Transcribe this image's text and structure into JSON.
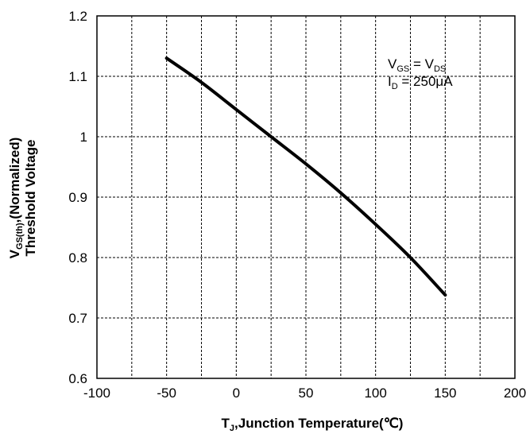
{
  "chart_data": {
    "type": "line",
    "xlim": [
      -100,
      200
    ],
    "ylim": [
      0.6,
      1.2
    ],
    "x_ticks": [
      "-100",
      "-50",
      "0",
      "50",
      "100",
      "150",
      "200"
    ],
    "y_ticks": [
      "0.6",
      "0.7",
      "0.8",
      "0.9",
      "1",
      "1.1",
      "1.2"
    ],
    "grid": true,
    "xlabel": {
      "main": "T",
      "sub": "J",
      "rest": ",Junction Temperature(℃)"
    },
    "ylabel": {
      "line1": {
        "main": "V",
        "sub": "GS(th)",
        "rest": ",(Normalized)"
      },
      "line2": "Threshold Voltage"
    },
    "annotation": {
      "line1": {
        "a": "V",
        "a_sub": "GS",
        "mid": " = V",
        "b_sub": "DS"
      },
      "line2": {
        "a": "I",
        "a_sub": "D",
        "rest": " = 250μA"
      }
    },
    "series": [
      {
        "x": [
          -50,
          -25,
          0,
          25,
          50,
          75,
          100,
          125,
          150
        ],
        "y": [
          1.13,
          1.09,
          1.045,
          1.0,
          0.955,
          0.907,
          0.855,
          0.8,
          0.738
        ]
      }
    ]
  }
}
